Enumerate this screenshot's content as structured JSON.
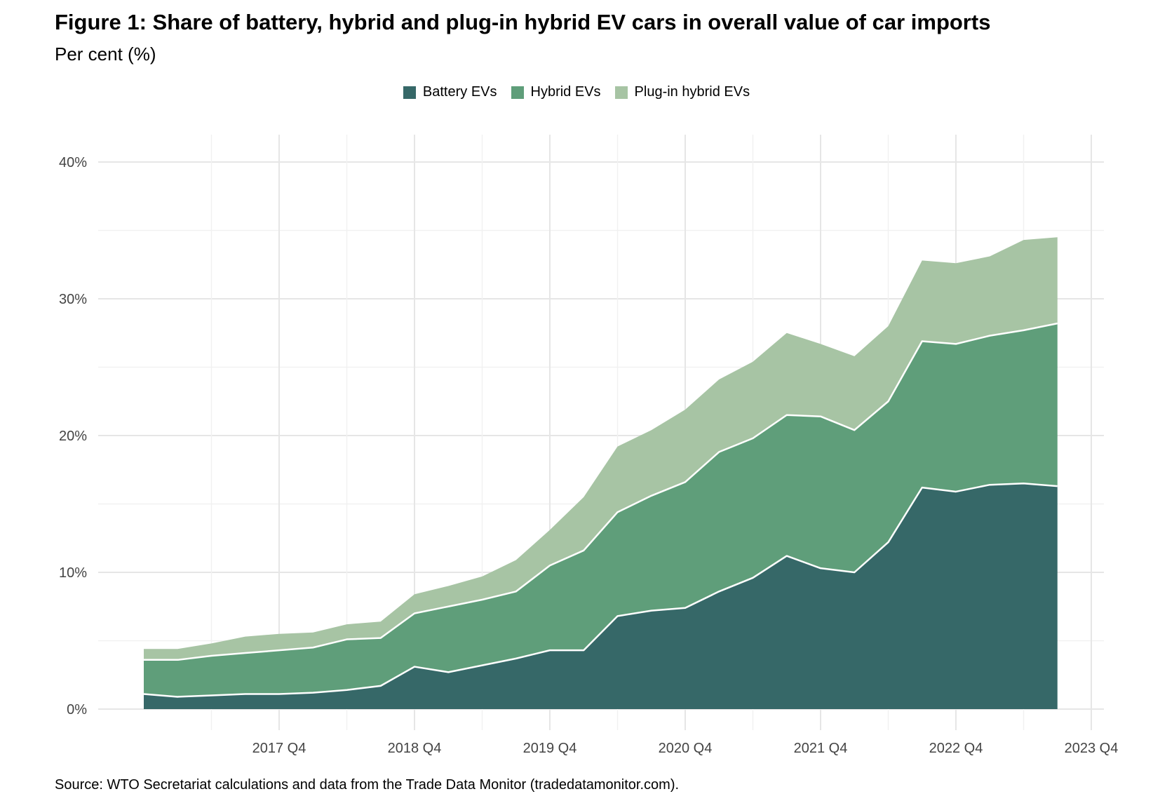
{
  "title": "Figure 1: Share of battery, hybrid and plug-in hybrid EV cars in overall value of car imports",
  "subtitle": "Per cent (%)",
  "source": "Source: WTO Secretariat calculations and data from the Trade Data Monitor (tradedatamonitor.com).",
  "colors": {
    "battery": "#366868",
    "hybrid": "#5f9e7a",
    "plugin": "#a7c4a4",
    "grid_major": "#e6e6e6",
    "grid_minor": "#f1f1f1",
    "tick_text": "#444444"
  },
  "chart_data": {
    "type": "area",
    "stacked": true,
    "legend_position": "top",
    "grid": true,
    "xlabel": "",
    "ylabel": "",
    "ylim": [
      0,
      40
    ],
    "y_ticks": [
      "0%",
      "10%",
      "20%",
      "30%",
      "40%"
    ],
    "x_tick_labels": [
      "2017 Q4",
      "2018 Q4",
      "2019 Q4",
      "2020 Q4",
      "2021 Q4",
      "2022 Q4",
      "2023 Q4"
    ],
    "x_tick_index": [
      4,
      8,
      12,
      16,
      20,
      24,
      28
    ],
    "series": [
      {
        "name": "Battery EVs",
        "color_key": "battery",
        "values": [
          1.1,
          0.9,
          1.0,
          1.1,
          1.1,
          1.2,
          1.4,
          1.7,
          3.1,
          2.7,
          3.2,
          3.7,
          4.3,
          4.3,
          6.8,
          7.2,
          7.4,
          8.6,
          9.6,
          11.2,
          10.3,
          10.0,
          12.2,
          16.2,
          15.9,
          16.4,
          16.5,
          16.3
        ]
      },
      {
        "name": "Hybrid EVs",
        "color_key": "hybrid",
        "values": [
          2.5,
          2.7,
          2.9,
          3.0,
          3.2,
          3.3,
          3.7,
          3.5,
          3.9,
          4.8,
          4.8,
          4.9,
          6.2,
          7.3,
          7.6,
          8.4,
          9.2,
          10.2,
          10.2,
          10.3,
          11.1,
          10.4,
          10.3,
          10.7,
          10.8,
          10.9,
          11.2,
          11.9
        ]
      },
      {
        "name": "Plug-in hybrid EVs",
        "color_key": "plugin",
        "values": [
          0.8,
          0.8,
          0.9,
          1.2,
          1.2,
          1.1,
          1.1,
          1.2,
          1.4,
          1.5,
          1.7,
          2.3,
          2.6,
          3.9,
          4.8,
          4.8,
          5.3,
          5.3,
          5.6,
          6.0,
          5.3,
          5.4,
          5.5,
          5.9,
          5.9,
          5.8,
          6.6,
          6.3
        ]
      }
    ]
  }
}
